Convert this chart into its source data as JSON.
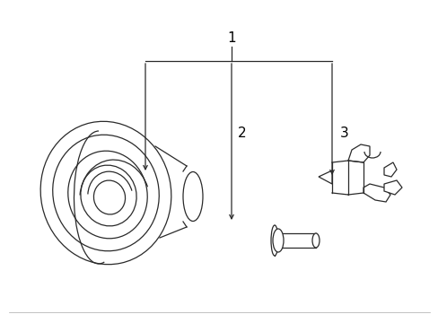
{
  "bg_color": "#ffffff",
  "line_color": "#2a2a2a",
  "fig_width": 4.89,
  "fig_height": 3.6,
  "dpi": 100,
  "label1": "1",
  "label2": "2",
  "label3": "3",
  "lw": 0.9
}
